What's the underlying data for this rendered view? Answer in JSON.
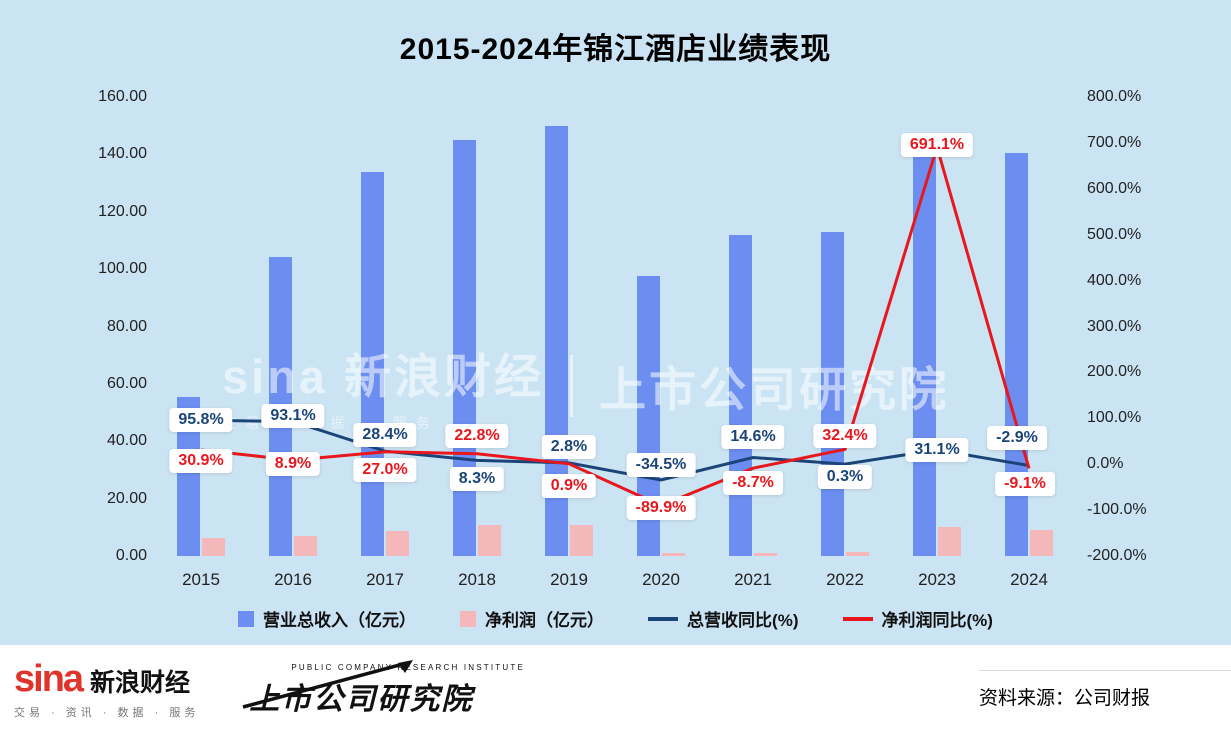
{
  "title": "2015-2024年锦江酒店业绩表现",
  "watermark": {
    "brand": "sina 新浪财经",
    "brand_sub": "交易 · 数据 · 服务",
    "institute": "上市公司研究院"
  },
  "chart_data": {
    "type": "combo_bar_line",
    "title": "2015-2024年锦江酒店业绩表现",
    "categories": [
      "2015",
      "2016",
      "2017",
      "2018",
      "2019",
      "2020",
      "2021",
      "2022",
      "2023",
      "2024"
    ],
    "bar_series": [
      {
        "name": "营业总收入（亿元）",
        "color": "#6c8ef0",
        "axis": "left",
        "values": [
          55.4,
          104.4,
          134.0,
          145.0,
          150.0,
          97.6,
          112.0,
          113.0,
          146.5,
          140.6
        ]
      },
      {
        "name": "净利润（亿元）",
        "color": "#f5b8ba",
        "axis": "left",
        "values": [
          6.4,
          6.9,
          8.8,
          10.8,
          10.9,
          1.1,
          1.0,
          1.3,
          10.0,
          9.1
        ]
      }
    ],
    "line_series": [
      {
        "name": "总营收同比(%)",
        "color": "#1b4579",
        "axis": "right",
        "values": [
          95.8,
          93.1,
          28.4,
          8.3,
          2.8,
          -34.5,
          14.6,
          0.3,
          31.1,
          -2.9
        ],
        "labels": [
          "95.8%",
          "93.1%",
          "28.4%",
          "8.3%",
          "2.8%",
          "-34.5%",
          "14.6%",
          "0.3%",
          "31.1%",
          "-2.9%"
        ]
      },
      {
        "name": "净利润同比(%)",
        "color": "#e8171e",
        "axis": "right",
        "values": [
          30.9,
          8.9,
          27.0,
          22.8,
          0.9,
          -89.9,
          -8.7,
          32.4,
          691.1,
          -9.1
        ],
        "labels": [
          "30.9%",
          "8.9%",
          "27.0%",
          "22.8%",
          "0.9%",
          "-89.9%",
          "-8.7%",
          "32.4%",
          "691.1%",
          "-9.1%"
        ]
      }
    ],
    "left_axis": {
      "min": 0,
      "max": 160,
      "step": 20,
      "ticks": [
        "160.00",
        "140.00",
        "120.00",
        "100.00",
        "80.00",
        "60.00",
        "40.00",
        "20.00",
        "0.00"
      ]
    },
    "right_axis": {
      "min": -200,
      "max": 800,
      "step": 100,
      "ticks": [
        "800.0%",
        "700.0%",
        "600.0%",
        "500.0%",
        "400.0%",
        "300.0%",
        "200.0%",
        "100.0%",
        "0.0%",
        "-100.0%",
        "-200.0%"
      ]
    },
    "legend_position": "bottom",
    "grid": false,
    "background": "#cbe4f4"
  },
  "footer": {
    "sina_logo": "sina",
    "sina_name": "新浪财经",
    "sina_tagline": "交易 · 资讯 · 数据 · 服务",
    "institute_en": "PUBLIC COMPANY RESEARCH INSTITUTE",
    "institute_cn": "上市公司研究院",
    "source_label": "资料来源：",
    "source_value": "公司财报"
  }
}
